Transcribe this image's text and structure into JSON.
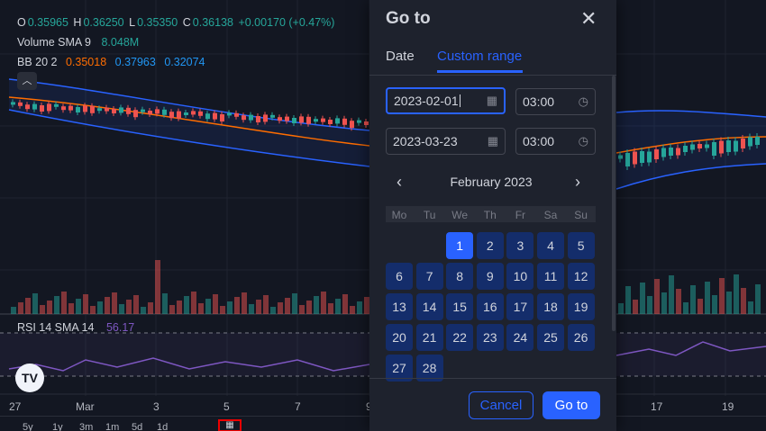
{
  "legend": {
    "ohlc": {
      "o_label": "O",
      "o_value": "0.35965",
      "h_label": "H",
      "h_value": "0.36250",
      "l_label": "L",
      "l_value": "0.35350",
      "c_label": "C",
      "c_value": "0.36138",
      "change": "+0.00170 (+0.47%)"
    },
    "volume": {
      "label": "Volume SMA 9",
      "value": "8.048M"
    },
    "bb": {
      "label": "BB 20 2",
      "basis": "0.35018",
      "upper": "0.37963",
      "lower": "0.32074"
    },
    "rsi": {
      "label": "RSI 14 SMA 14",
      "value": "56.17"
    }
  },
  "x_axis_labels": [
    "27",
    "Mar",
    "3",
    "5",
    "7",
    "9",
    "17",
    "19"
  ],
  "bottom_bar": [
    "5y",
    "1y",
    "3m",
    "1m",
    "5d",
    "1d"
  ],
  "logo": "TV",
  "colors": {
    "up": "#26a69a",
    "down": "#ef5350",
    "bb_band": "#2962ff",
    "basis": "#ff6d00",
    "rsi": "#7e57c2",
    "accent": "#2962ff",
    "dialog_bg": "#1e222d",
    "chart_bg": "#131722"
  },
  "icons": {
    "close": "close-icon",
    "calendar": "calendar-icon",
    "clock": "clock-icon",
    "prev": "chevron-left-icon",
    "next": "chevron-right-icon"
  },
  "dialog": {
    "title": "Go to",
    "tabs": [
      {
        "label": "Date"
      },
      {
        "label": "Custom range"
      }
    ],
    "active_tab": "Custom range",
    "start_date": "2023-02-01",
    "start_time": "03:00",
    "end_date": "2023-03-23",
    "end_time": "03:00",
    "month_label": "February 2023",
    "weekdays": [
      "Mo",
      "Tu",
      "We",
      "Th",
      "Fr",
      "Sa",
      "Su"
    ],
    "first_day_offset": 2,
    "days": [
      "1",
      "2",
      "3",
      "4",
      "5",
      "6",
      "7",
      "8",
      "9",
      "10",
      "11",
      "12",
      "13",
      "14",
      "15",
      "16",
      "17",
      "18",
      "19",
      "20",
      "21",
      "22",
      "23",
      "24",
      "25",
      "26",
      "27",
      "28"
    ],
    "selected_day": "1",
    "cancel_label": "Cancel",
    "go_label": "Go to"
  }
}
